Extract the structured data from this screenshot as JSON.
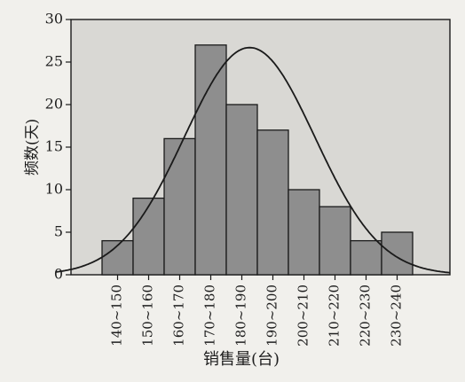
{
  "chart_data": {
    "type": "bar",
    "title": "",
    "xlabel": "销售量(台)",
    "ylabel": "频数(天)",
    "categories": [
      "140~150",
      "150~160",
      "160~170",
      "170~180",
      "180~190",
      "190~200",
      "200~210",
      "210~220",
      "220~230",
      "230~240"
    ],
    "values": [
      4,
      9,
      16,
      27,
      20,
      17,
      10,
      8,
      4,
      5
    ],
    "ylim": [
      0,
      30
    ],
    "yticks": [
      0,
      5,
      10,
      15,
      20,
      25,
      30
    ],
    "grid": false,
    "overlay": {
      "type": "normal-curve",
      "mean": 187.5,
      "sd": 21,
      "peak": 26.7
    },
    "colors": {
      "bar_fill": "#8e8e8e",
      "bar_stroke": "#1a1a1a",
      "curve": "#1a1a1a",
      "plot_background": "#d9d8d4"
    }
  }
}
